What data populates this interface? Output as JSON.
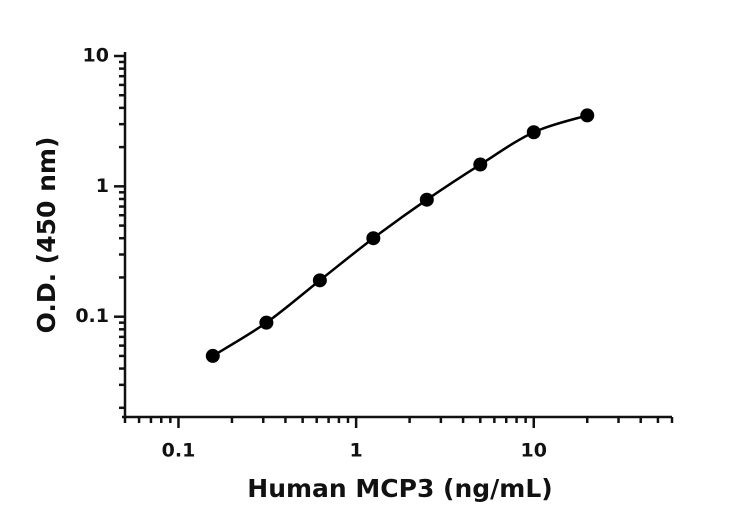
{
  "chart_data": {
    "type": "scatter",
    "line": true,
    "x_label": "Human MCP3 (ng/mL)",
    "y_label": "O.D. (450 nm)",
    "x": [
      0.156,
      0.3125,
      0.625,
      1.25,
      2.5,
      5,
      10,
      20
    ],
    "series": [
      {
        "color": "#000000",
        "values": [
          0.05,
          0.09,
          0.19,
          0.4,
          0.79,
          1.47,
          2.6,
          3.5
        ]
      }
    ],
    "xlim": [
      0.05,
      60
    ],
    "ylim": [
      0.017,
      10
    ],
    "xticks": [
      0.1,
      1,
      10
    ],
    "yticks": [
      0.1,
      1,
      10
    ],
    "xlog": true,
    "ylog": true
  }
}
